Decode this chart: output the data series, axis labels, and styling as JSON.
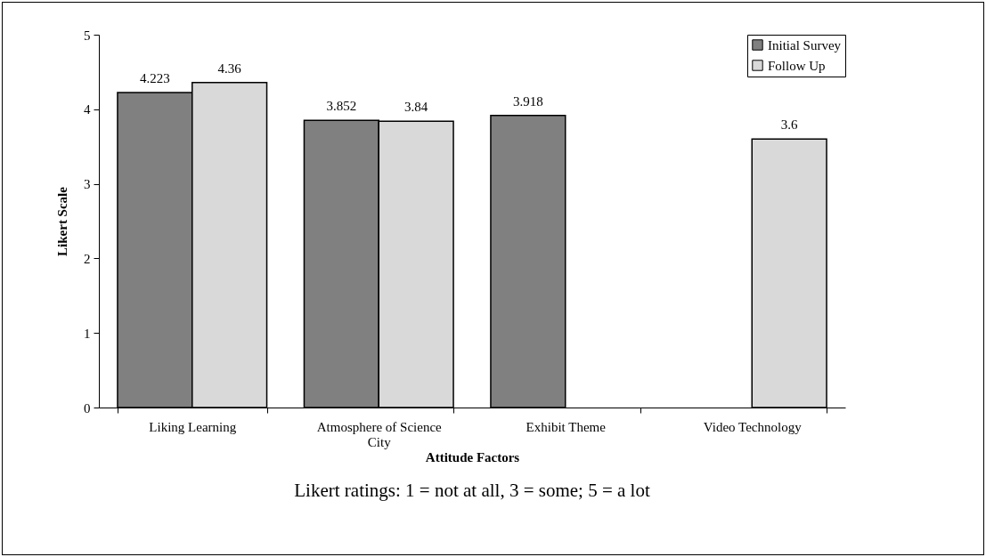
{
  "chart_data": {
    "type": "bar",
    "xlabel": "Attitude Factors",
    "ylabel": "Likert Scale",
    "categories": [
      "Liking Learning",
      "Atmosphere of Science City",
      "Exhibit Theme",
      "Video Technology"
    ],
    "series": [
      {
        "name": "Initial Survey",
        "color": "#808080",
        "values": [
          4.223,
          3.852,
          3.918,
          null
        ]
      },
      {
        "name": "Follow Up",
        "color": "#d9d9d9",
        "values": [
          4.36,
          3.84,
          null,
          3.6
        ]
      }
    ],
    "ylim": [
      0,
      5
    ],
    "yticks": [
      0,
      1,
      2,
      3,
      4,
      5
    ],
    "grid": false,
    "legend": "top right",
    "data_labels": true,
    "annotations": [
      "Likert ratings: 1 = not at all, 3 = some; 5 = a lot"
    ]
  }
}
